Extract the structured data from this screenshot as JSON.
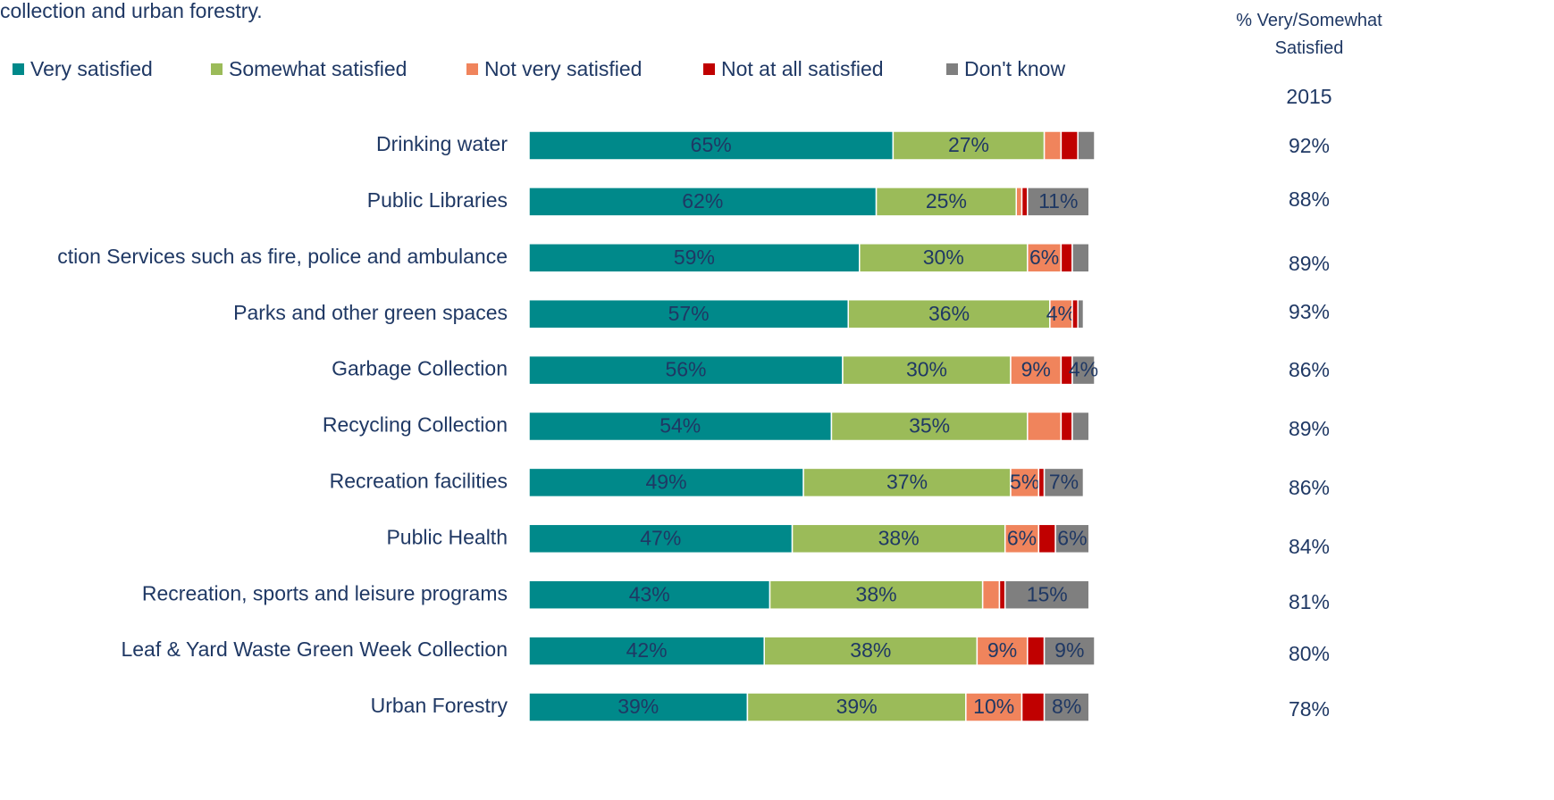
{
  "chart_data": {
    "type": "bar",
    "orientation": "horizontal",
    "stacked": true,
    "title": "collection and urban forestry.",
    "categories": [
      "Drinking water",
      "Public Libraries",
      "ction Services such as fire, police and ambulance",
      "Parks and other green spaces",
      "Garbage  Collection",
      "Recycling Collection",
      "Recreation facilities",
      "Public Health",
      "Recreation, sports and leisure programs",
      "Leaf & Yard Waste Green Week Collection",
      "Urban Forestry"
    ],
    "series": [
      {
        "name": "Very satisfied",
        "color": "#00898a",
        "values": [
          65,
          62,
          59,
          57,
          56,
          54,
          49,
          47,
          43,
          42,
          39
        ],
        "value_labels": [
          "65%",
          "62%",
          "59%",
          "57%",
          "56%",
          "54%",
          "49%",
          "47%",
          "43%",
          "42%",
          "39%"
        ]
      },
      {
        "name": "Somewhat satisfied",
        "color": "#9bbb59",
        "values": [
          27,
          25,
          30,
          36,
          30,
          35,
          37,
          38,
          38,
          38,
          39
        ],
        "value_labels": [
          "27%",
          "25%",
          "30%",
          "36%",
          "30%",
          "35%",
          "37%",
          "38%",
          "38%",
          "38%",
          "39%"
        ]
      },
      {
        "name": "Not very satisfied",
        "color": "#f0845c",
        "values": [
          3,
          1,
          6,
          4,
          9,
          6,
          5,
          6,
          3,
          9,
          10
        ],
        "value_labels": [
          null,
          null,
          "6%",
          "4%",
          "9%",
          null,
          "5%",
          "6%",
          null,
          "9%",
          "10%"
        ]
      },
      {
        "name": "Not at all satisfied",
        "color": "#c00000",
        "values": [
          3,
          1,
          2,
          1,
          2,
          2,
          1,
          3,
          1,
          3,
          4
        ],
        "value_labels": [
          null,
          null,
          null,
          null,
          null,
          null,
          null,
          null,
          null,
          null,
          null
        ]
      },
      {
        "name": "Don't know",
        "color": "#7f7f7f",
        "values": [
          3,
          11,
          3,
          1,
          4,
          3,
          7,
          6,
          15,
          9,
          8
        ],
        "value_labels": [
          null,
          "11%",
          null,
          null,
          "4%",
          null,
          "7%",
          "6%",
          "15%",
          "9%",
          "8%"
        ]
      }
    ],
    "summary": {
      "title": "% Very/Somewhat Satisfied",
      "year": "2015",
      "values": [
        92,
        88,
        89,
        93,
        86,
        89,
        86,
        84,
        81,
        80,
        78
      ],
      "value_labels": [
        "92%",
        "88%",
        "89%",
        "93%",
        "86%",
        "89%",
        "86%",
        "84%",
        "81%",
        "80%",
        "78%"
      ]
    }
  }
}
